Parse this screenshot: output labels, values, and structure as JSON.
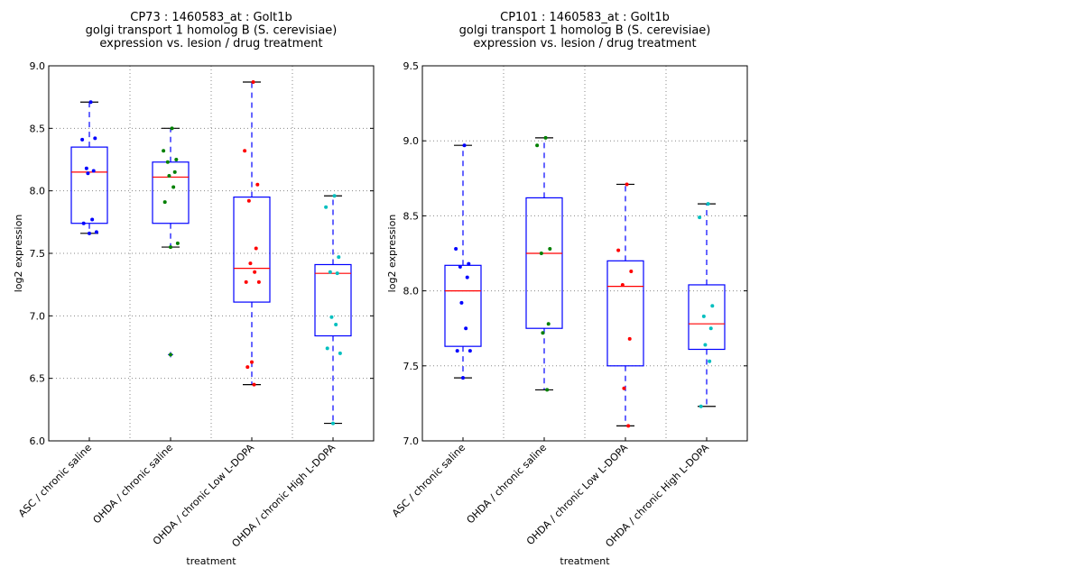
{
  "chart_data": [
    {
      "type": "box",
      "title_lines": [
        "CP73 : 1460583_at : Golt1b",
        "golgi transport 1 homolog B (S. cerevisiae)",
        "expression vs. lesion / drug treatment"
      ],
      "xlabel": "treatment",
      "ylabel": "log2 expression",
      "ylim": [
        6.0,
        9.0
      ],
      "yticks": [
        "6.0",
        "6.5",
        "7.0",
        "7.5",
        "8.0",
        "8.5",
        "9.0"
      ],
      "grid": true,
      "categories": [
        "ASC / chronic saline",
        "OHDA / chronic saline",
        "OHDA / chronic Low L-DOPA",
        "OHDA / chronic High L-DOPA"
      ],
      "point_colors": [
        "#0000ff",
        "#008000",
        "#ff0000",
        "#00bfbf"
      ],
      "boxes": [
        {
          "whisker_high": 8.71,
          "q3": 8.35,
          "median": 8.15,
          "q1": 7.74,
          "whisker_low": 7.66,
          "outliers": [],
          "points": [
            8.71,
            8.41,
            8.42,
            8.18,
            8.16,
            8.14,
            7.77,
            7.74,
            7.67,
            7.66
          ]
        },
        {
          "whisker_high": 8.5,
          "q3": 8.23,
          "median": 8.11,
          "q1": 7.74,
          "whisker_low": 7.55,
          "outliers": [
            6.69
          ],
          "points": [
            8.5,
            8.32,
            8.25,
            8.23,
            8.15,
            8.12,
            8.03,
            7.91,
            7.58,
            7.55,
            6.69
          ]
        },
        {
          "whisker_high": 8.87,
          "q3": 7.95,
          "median": 7.38,
          "q1": 7.11,
          "whisker_low": 6.45,
          "outliers": [],
          "points": [
            8.87,
            8.32,
            8.05,
            7.92,
            7.54,
            7.42,
            7.35,
            7.27,
            7.27,
            6.63,
            6.59,
            6.45
          ]
        },
        {
          "whisker_high": 7.96,
          "q3": 7.41,
          "median": 7.34,
          "q1": 6.84,
          "whisker_low": 6.14,
          "outliers": [],
          "points": [
            7.96,
            7.87,
            7.47,
            7.35,
            7.34,
            6.99,
            6.93,
            6.74,
            6.7,
            6.14
          ]
        }
      ]
    },
    {
      "type": "box",
      "title_lines": [
        "CP101 : 1460583_at : Golt1b",
        "golgi transport 1 homolog B (S. cerevisiae)",
        "expression vs. lesion / drug treatment"
      ],
      "xlabel": "treatment",
      "ylabel": "log2 expression",
      "ylim": [
        7.0,
        9.5
      ],
      "yticks": [
        "7.0",
        "7.5",
        "8.0",
        "8.5",
        "9.0",
        "9.5"
      ],
      "grid": true,
      "categories": [
        "ASC / chronic saline",
        "OHDA / chronic saline",
        "OHDA / chronic Low L-DOPA",
        "OHDA / chronic High L-DOPA"
      ],
      "point_colors": [
        "#0000ff",
        "#008000",
        "#ff0000",
        "#00bfbf"
      ],
      "boxes": [
        {
          "whisker_high": 8.97,
          "q3": 8.17,
          "median": 8.0,
          "q1": 7.63,
          "whisker_low": 7.42,
          "outliers": [],
          "points": [
            8.97,
            8.28,
            8.18,
            8.16,
            8.09,
            7.92,
            7.75,
            7.6,
            7.6,
            7.42
          ]
        },
        {
          "whisker_high": 9.02,
          "q3": 8.62,
          "median": 8.25,
          "q1": 7.75,
          "whisker_low": 7.34,
          "outliers": [],
          "points": [
            9.02,
            8.97,
            8.28,
            8.25,
            7.78,
            7.72,
            7.34
          ]
        },
        {
          "whisker_high": 8.71,
          "q3": 8.2,
          "median": 8.03,
          "q1": 7.5,
          "whisker_low": 7.1,
          "outliers": [],
          "points": [
            8.71,
            8.27,
            8.13,
            8.04,
            7.68,
            7.35,
            7.1
          ]
        },
        {
          "whisker_high": 8.58,
          "q3": 8.04,
          "median": 7.78,
          "q1": 7.61,
          "whisker_low": 7.23,
          "outliers": [],
          "points": [
            8.58,
            8.49,
            7.9,
            7.83,
            7.75,
            7.64,
            7.53,
            7.23
          ]
        }
      ]
    }
  ]
}
